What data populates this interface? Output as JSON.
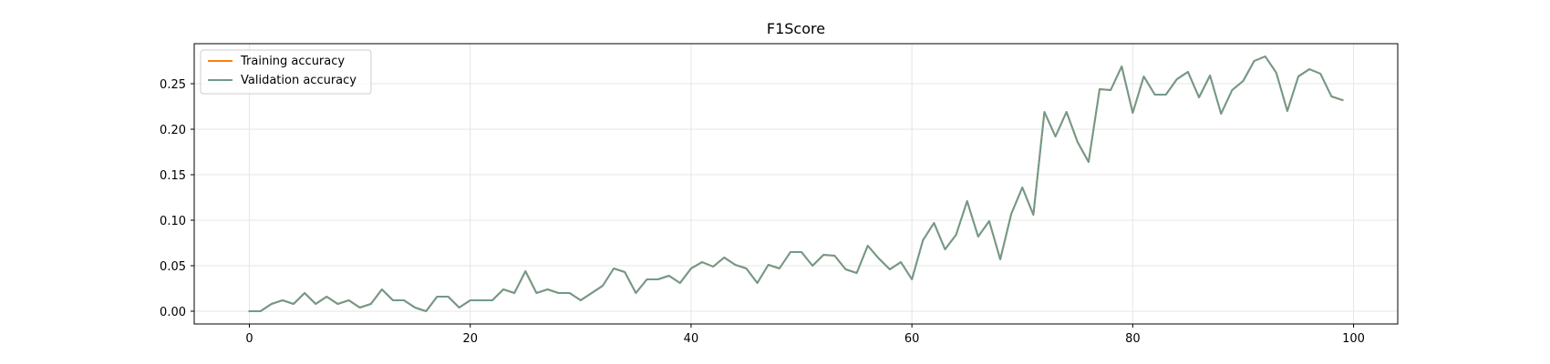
{
  "chart_data": {
    "type": "line",
    "title": "F1Score",
    "xlabel": "",
    "ylabel": "",
    "xlim": [
      -5,
      104
    ],
    "ylim": [
      -0.014,
      0.294
    ],
    "xticks": [
      0,
      20,
      40,
      60,
      80,
      100
    ],
    "yticks": [
      0.0,
      0.05,
      0.1,
      0.15,
      0.2,
      0.25
    ],
    "xtick_labels": [
      "0",
      "20",
      "40",
      "60",
      "80",
      "100"
    ],
    "ytick_labels": [
      "0.00",
      "0.05",
      "0.10",
      "0.15",
      "0.20",
      "0.25"
    ],
    "grid": true,
    "legend_position": "top-left",
    "series": [
      {
        "name": "Training accuracy",
        "color": "#ff7f0e",
        "values": [
          0.0,
          0.0,
          0.008,
          0.012,
          0.008,
          0.02,
          0.008,
          0.016,
          0.008,
          0.012,
          0.004,
          0.008,
          0.024,
          0.012,
          0.012,
          0.004,
          0.0,
          0.016,
          0.016,
          0.004,
          0.012,
          0.012,
          0.012,
          0.024,
          0.02,
          0.044,
          0.02,
          0.024,
          0.02,
          0.02,
          0.012,
          0.02,
          0.028,
          0.047,
          0.043,
          0.02,
          0.035,
          0.035,
          0.039,
          0.031,
          0.047,
          0.054,
          0.049,
          0.059,
          0.051,
          0.047,
          0.031,
          0.051,
          0.047,
          0.065,
          0.065,
          0.05,
          0.062,
          0.061,
          0.046,
          0.042,
          0.072,
          0.058,
          0.046,
          0.054,
          0.035,
          0.078,
          0.097,
          0.068,
          0.084,
          0.121,
          0.082,
          0.099,
          0.057,
          0.107,
          0.136,
          0.106,
          0.219,
          0.192,
          0.219,
          0.186,
          0.164,
          0.244,
          0.243,
          0.269,
          0.218,
          0.258,
          0.238,
          0.238,
          0.255,
          0.263,
          0.235,
          0.259,
          0.217,
          0.243,
          0.253,
          0.275,
          0.28,
          0.262,
          0.22,
          0.258,
          0.266,
          0.261,
          0.236,
          0.232
        ]
      },
      {
        "name": "Validation accuracy",
        "color": "#6f9a8e",
        "values": [
          0.0,
          0.0,
          0.008,
          0.012,
          0.008,
          0.02,
          0.008,
          0.016,
          0.008,
          0.012,
          0.004,
          0.008,
          0.024,
          0.012,
          0.012,
          0.004,
          0.0,
          0.016,
          0.016,
          0.004,
          0.012,
          0.012,
          0.012,
          0.024,
          0.02,
          0.044,
          0.02,
          0.024,
          0.02,
          0.02,
          0.012,
          0.02,
          0.028,
          0.047,
          0.043,
          0.02,
          0.035,
          0.035,
          0.039,
          0.031,
          0.047,
          0.054,
          0.049,
          0.059,
          0.051,
          0.047,
          0.031,
          0.051,
          0.047,
          0.065,
          0.065,
          0.05,
          0.062,
          0.061,
          0.046,
          0.042,
          0.072,
          0.058,
          0.046,
          0.054,
          0.035,
          0.078,
          0.097,
          0.068,
          0.084,
          0.121,
          0.082,
          0.099,
          0.057,
          0.107,
          0.136,
          0.106,
          0.219,
          0.192,
          0.219,
          0.186,
          0.164,
          0.244,
          0.243,
          0.269,
          0.218,
          0.258,
          0.238,
          0.238,
          0.255,
          0.263,
          0.235,
          0.259,
          0.217,
          0.243,
          0.253,
          0.275,
          0.28,
          0.262,
          0.22,
          0.258,
          0.266,
          0.261,
          0.236,
          0.232
        ]
      }
    ]
  }
}
